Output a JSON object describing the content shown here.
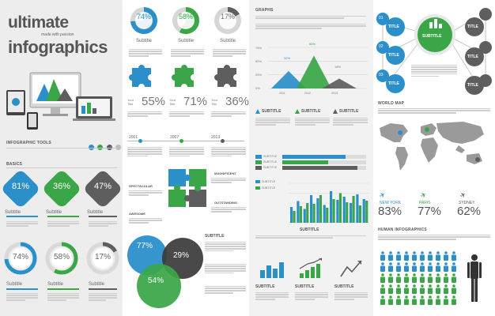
{
  "colors": {
    "blue": "#2b8fc9",
    "green": "#3aa648",
    "gray": "#5e5e5e",
    "light": "#e5e5e5"
  },
  "header": {
    "line1": "ultimate",
    "line2": "made with passion",
    "line3": "infographics"
  },
  "col1": {
    "tools_title": "INFOGRAPHIC TOOLS",
    "basics_title": "BASICS",
    "diamonds": [
      {
        "value": "81%",
        "label": "Subtitle"
      },
      {
        "value": "36%",
        "label": "Subtitle"
      },
      {
        "value": "47%",
        "label": "Subtitle"
      }
    ],
    "rings": [
      {
        "value": "74%",
        "label": "Subtitle",
        "level": 74
      },
      {
        "value": "58%",
        "label": "Subtitle",
        "level": 58
      },
      {
        "value": "17%",
        "label": "Subtitle",
        "level": 17
      }
    ]
  },
  "col2": {
    "pies": [
      {
        "value": "74%",
        "label": "Subtitle",
        "level": 74
      },
      {
        "value": "58%",
        "label": "Subtitle",
        "level": 58
      },
      {
        "value": "17%",
        "label": "Subtitle",
        "level": 17
      }
    ],
    "stats": [
      {
        "label": "Your Title",
        "value": "55%"
      },
      {
        "label": "Your Title",
        "value": "71%"
      },
      {
        "label": "Your Title",
        "value": "36%"
      }
    ],
    "years": [
      "2001",
      "2007",
      "2013"
    ],
    "puzzle_labels": {
      "left1": "SPECTACULAR",
      "left2": "AWESOME",
      "right1": "MAGNIFICENT",
      "right2": "OUTSTANDING"
    },
    "venn": [
      {
        "value": "77%"
      },
      {
        "value": "29%"
      },
      {
        "value": "54%"
      }
    ],
    "venn_title": "SUBTITLE"
  },
  "col3": {
    "graphs_title": "GRAPHS",
    "chart_data": {
      "type": "area",
      "categories": [
        "2011",
        "2012",
        "2013"
      ],
      "values": [
        32,
        60,
        18
      ],
      "labels": [
        "32%",
        "60%",
        "18%"
      ],
      "y_ticks": [
        "75%",
        "50%",
        "25%",
        "0%"
      ],
      "ylim": [
        0,
        75
      ]
    },
    "triangle_titles": [
      "SUBTITLE",
      "SUBTITLE",
      "SUBTITLE"
    ],
    "hbar_labels": [
      "SUBTITLE",
      "SUBTITLE",
      "SUBTITLE"
    ],
    "hbars": [
      75,
      55,
      90
    ],
    "bar_chart": {
      "type": "bar",
      "values_a": [
        40,
        55,
        35,
        70,
        62,
        45,
        80,
        58,
        66,
        50,
        72,
        60
      ],
      "values_b": [
        30,
        42,
        50,
        48,
        70,
        38,
        60,
        75,
        52,
        68,
        44,
        56
      ],
      "legend": [
        "SUBTITLE",
        "SUBTITLE"
      ],
      "title": "SUBTITLE"
    },
    "icon_titles": [
      "SUBTITLE",
      "SUBTITLE",
      "SUBTITLE"
    ]
  },
  "col4": {
    "steps": [
      {
        "num": "01",
        "title": "TITLE"
      },
      {
        "num": "02",
        "title": "TITLE"
      },
      {
        "num": "03",
        "title": "TITLE"
      }
    ],
    "right_titles": [
      "TITLE",
      "TITLE",
      "TITLE"
    ],
    "center_subtitle": "SUBTITLE",
    "world_title": "WORLD MAP",
    "cities": [
      {
        "name": "NEW YORK",
        "value": "83%"
      },
      {
        "name": "PARIS",
        "value": "77%"
      },
      {
        "name": "SYDNEY",
        "value": "62%"
      }
    ],
    "human_title": "HUMAN INFOGRAPHICS"
  }
}
